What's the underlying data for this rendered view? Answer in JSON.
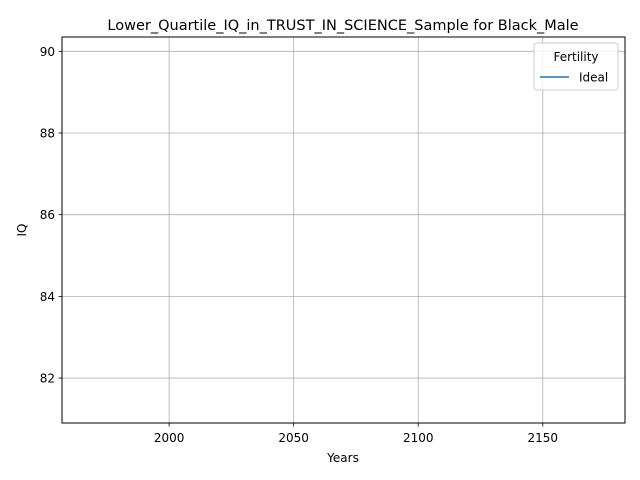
{
  "chart_data": {
    "type": "line",
    "title": "Lower_Quartile_IQ_in_TRUST_IN_SCIENCE_Sample for Black_Male",
    "xlabel": "Years",
    "ylabel": "IQ",
    "xlim": [
      1957,
      2183
    ],
    "ylim": [
      80.9,
      90.35
    ],
    "x_ticks": [
      2000,
      2050,
      2100,
      2150
    ],
    "y_ticks": [
      82,
      84,
      86,
      88,
      90
    ],
    "grid": true,
    "legend": {
      "title": "Fertility",
      "position": "top-right"
    },
    "series": [
      {
        "name": "Ideal",
        "color": "#1f77b4",
        "x": [],
        "y": []
      }
    ]
  }
}
